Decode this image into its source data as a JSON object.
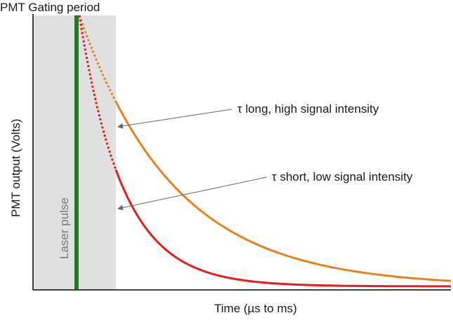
{
  "title": "PMT Gating period",
  "y_axis_label": "PMT output (Volts)",
  "x_axis_label": "Time (µs to ms)",
  "laser_label": "Laser pulse",
  "annotations": {
    "long": "τ long, high signal intensity",
    "short": "τ short, low signal intensity"
  },
  "colors": {
    "gate_region": "#e0e0e0",
    "laser_pulse": "#1e7d1e",
    "long_decay": "#e6821e",
    "short_decay": "#e81c1c",
    "axis": "#000000",
    "arrow": "#666666"
  },
  "chart_data": {
    "type": "line",
    "title": "PMT Gating period",
    "xlabel": "Time (µs to ms)",
    "ylabel": "PMT output (Volts)",
    "ticks": "none",
    "series": [
      {
        "name": "τ long, high signal intensity",
        "shape": "exponential decay",
        "relative_decay_rate": 1,
        "dotted_inside_gate": true
      },
      {
        "name": "τ short, low signal intensity",
        "shape": "exponential decay",
        "relative_decay_rate": 2.2,
        "dotted_inside_gate": true
      }
    ]
  }
}
